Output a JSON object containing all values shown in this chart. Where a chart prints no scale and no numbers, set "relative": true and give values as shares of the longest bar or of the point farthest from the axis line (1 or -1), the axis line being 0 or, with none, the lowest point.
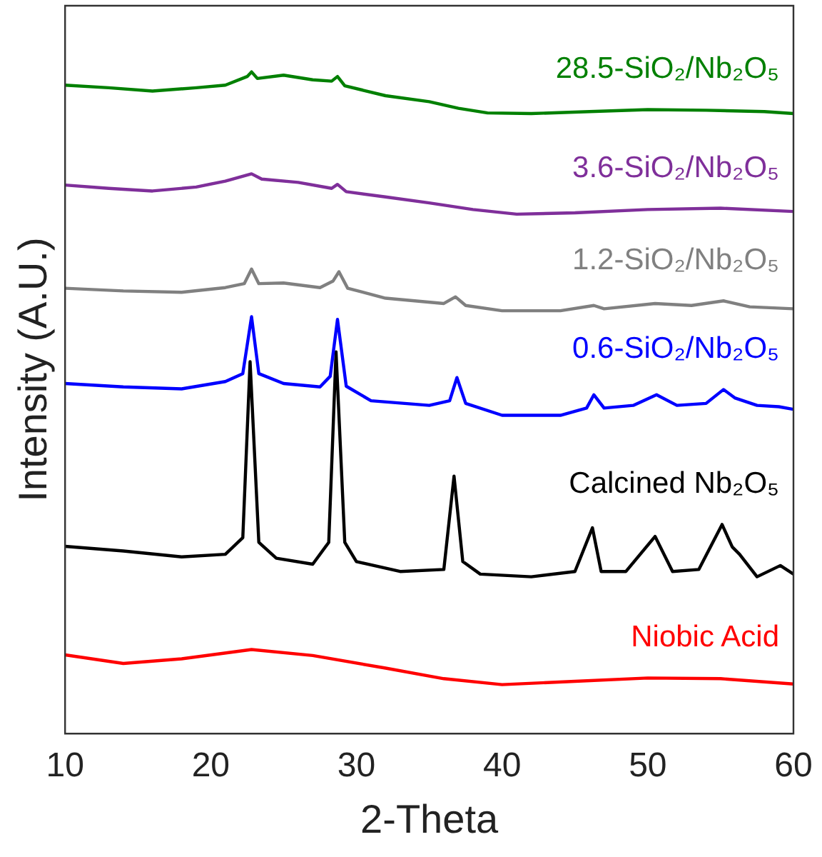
{
  "chart_data": {
    "type": "line",
    "relative": true,
    "xlabel": "2-Theta",
    "ylabel": "Intensity (A.U.)",
    "xlim": [
      10,
      60
    ],
    "xticks": [
      10,
      20,
      30,
      40,
      50,
      60
    ],
    "grid": false,
    "legend": false,
    "marker": "none",
    "line_style": "solid",
    "series": [
      {
        "name": "28.5-SiO₂/Nb₂O₅",
        "color": "#008000",
        "x": [
          10,
          13,
          16,
          19,
          21,
          22.5,
          22.8,
          23.2,
          25,
          27,
          28.3,
          28.7,
          29.2,
          32,
          35,
          37,
          39,
          42,
          46,
          50,
          54,
          58,
          60
        ],
        "values": [
          0.98,
          0.976,
          0.971,
          0.976,
          0.98,
          0.993,
          1.0,
          0.99,
          0.995,
          0.988,
          0.986,
          0.993,
          0.979,
          0.964,
          0.955,
          0.945,
          0.938,
          0.937,
          0.94,
          0.943,
          0.942,
          0.94,
          0.937
        ]
      },
      {
        "name": "3.6-SiO₂/Nb₂O₅",
        "color": "#7f2f9a",
        "x": [
          10,
          13,
          16,
          19,
          21,
          22.8,
          23.5,
          26,
          28.3,
          28.7,
          29.3,
          32,
          35,
          38,
          41,
          45,
          50,
          55,
          60
        ],
        "values": [
          0.829,
          0.824,
          0.82,
          0.826,
          0.835,
          0.846,
          0.838,
          0.833,
          0.824,
          0.83,
          0.819,
          0.811,
          0.802,
          0.792,
          0.785,
          0.787,
          0.792,
          0.794,
          0.789
        ]
      },
      {
        "name": "1.2-SiO₂/Nb₂O₅",
        "color": "#808080",
        "x": [
          10,
          14,
          18,
          21,
          22.3,
          22.8,
          23.3,
          25,
          27.5,
          28.4,
          28.8,
          29.4,
          32,
          36,
          36.8,
          37.5,
          40,
          44,
          46.3,
          47,
          50.5,
          53,
          55.2,
          57,
          60
        ],
        "values": [
          0.673,
          0.669,
          0.667,
          0.674,
          0.68,
          0.702,
          0.68,
          0.681,
          0.674,
          0.684,
          0.698,
          0.673,
          0.658,
          0.65,
          0.66,
          0.647,
          0.639,
          0.639,
          0.647,
          0.642,
          0.65,
          0.647,
          0.654,
          0.645,
          0.642
        ]
      },
      {
        "name": "0.6-SiO₂/Nb₂O₅",
        "color": "#0000ff",
        "x": [
          10,
          14,
          18,
          21,
          22.2,
          22.8,
          23.3,
          25,
          27.5,
          28.2,
          28.7,
          29.3,
          31,
          35,
          36.4,
          36.9,
          37.5,
          40,
          44,
          45.8,
          46.3,
          47,
          49,
          50.6,
          52,
          54,
          55.2,
          56,
          57.5,
          59,
          60
        ],
        "values": [
          0.529,
          0.524,
          0.521,
          0.532,
          0.544,
          0.63,
          0.544,
          0.529,
          0.524,
          0.54,
          0.626,
          0.525,
          0.503,
          0.496,
          0.503,
          0.538,
          0.499,
          0.481,
          0.481,
          0.492,
          0.512,
          0.492,
          0.496,
          0.512,
          0.496,
          0.499,
          0.52,
          0.507,
          0.496,
          0.494,
          0.49
        ]
      },
      {
        "name": "Calcined Nb₂O₅",
        "color": "#000000",
        "x": [
          10,
          14,
          18,
          21,
          22.2,
          22.7,
          23.3,
          24.5,
          27,
          28.1,
          28.6,
          29.2,
          30,
          33,
          36,
          36.7,
          37.3,
          38.5,
          42,
          45,
          46.2,
          46.8,
          48.5,
          50.5,
          51.7,
          53.5,
          55.1,
          55.8,
          56.3,
          57.5,
          59.1,
          60
        ],
        "values": [
          0.283,
          0.276,
          0.267,
          0.271,
          0.296,
          0.562,
          0.289,
          0.265,
          0.256,
          0.289,
          0.577,
          0.289,
          0.26,
          0.245,
          0.248,
          0.389,
          0.26,
          0.241,
          0.237,
          0.245,
          0.311,
          0.245,
          0.245,
          0.298,
          0.245,
          0.248,
          0.316,
          0.282,
          0.271,
          0.237,
          0.254,
          0.241
        ]
      },
      {
        "name": "Niobic Acid",
        "color": "#ff0000",
        "x": [
          10,
          14,
          18,
          22.8,
          27,
          32,
          36,
          40,
          45,
          50,
          55,
          60
        ],
        "values": [
          0.119,
          0.106,
          0.113,
          0.127,
          0.118,
          0.099,
          0.083,
          0.074,
          0.079,
          0.084,
          0.083,
          0.075
        ]
      }
    ]
  }
}
